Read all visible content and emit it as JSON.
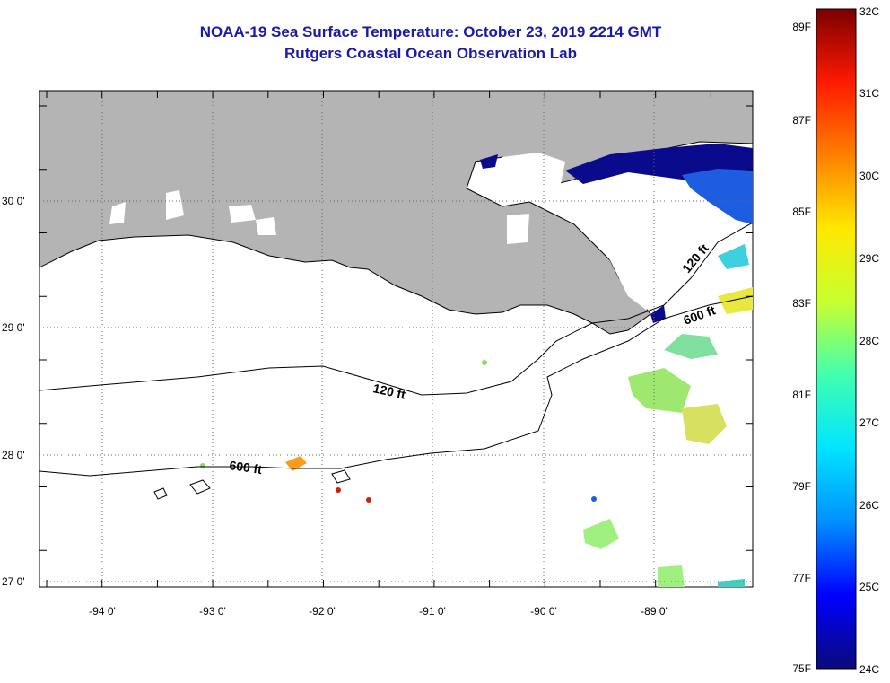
{
  "title": {
    "line1": "NOAA-19 Sea Surface Temperature:  October 23, 2019 2214 GMT",
    "line2": "Rutgers Coastal Ocean Observation Lab"
  },
  "map": {
    "lat_labels": [
      "30 0'",
      "29 0'",
      "28 0'",
      "27 0'"
    ],
    "lon_labels": [
      "-94 0'",
      "-93 0'",
      "-92 0'",
      "-91 0'",
      "-90 0'",
      "-89 0'"
    ],
    "contours": [
      "120 ft",
      "600 ft",
      "120 ft",
      "600 ft"
    ],
    "colors": {
      "land": "#b4b4b4",
      "ocean": "#ffffff",
      "cloud": "#ffffff"
    }
  },
  "colorbar": {
    "f_labels": [
      "89F",
      "87F",
      "85F",
      "83F",
      "81F",
      "79F",
      "77F",
      "75F"
    ],
    "c_labels": [
      "32C",
      "31C",
      "30C",
      "29C",
      "28C",
      "27C",
      "26C",
      "25C",
      "24C"
    ],
    "colormap": [
      "#0a0a7a",
      "#0000ff",
      "#0090ff",
      "#00e4ff",
      "#40ffb0",
      "#c8ff30",
      "#ffe800",
      "#ff8000",
      "#ff1a00",
      "#7a0000"
    ]
  }
}
